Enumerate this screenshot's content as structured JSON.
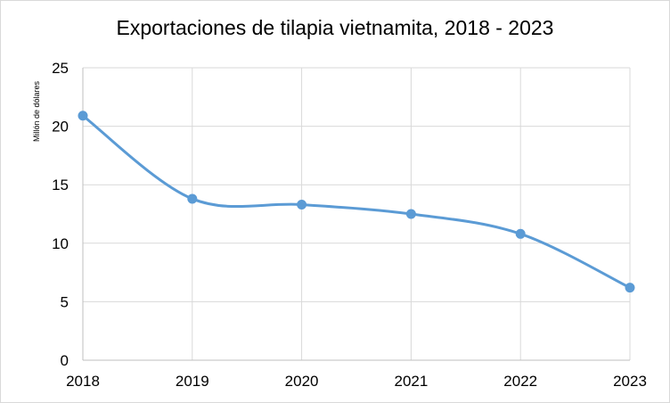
{
  "chart_data": {
    "type": "line",
    "title": "Exportaciones de tilapia vietnamita, 2018 - 2023",
    "xlabel": "",
    "ylabel": "Millón de dólares",
    "categories": [
      "2018",
      "2019",
      "2020",
      "2021",
      "2022",
      "2023"
    ],
    "series": [
      {
        "values": [
          20.9,
          13.8,
          13.3,
          12.5,
          10.8,
          6.2
        ],
        "color": "#5b9bd5",
        "smooth": true,
        "markers": true
      }
    ],
    "ylim": [
      0,
      25
    ],
    "yticks": [
      0,
      5,
      10,
      15,
      20,
      25
    ],
    "grid": true,
    "legend": "none"
  }
}
